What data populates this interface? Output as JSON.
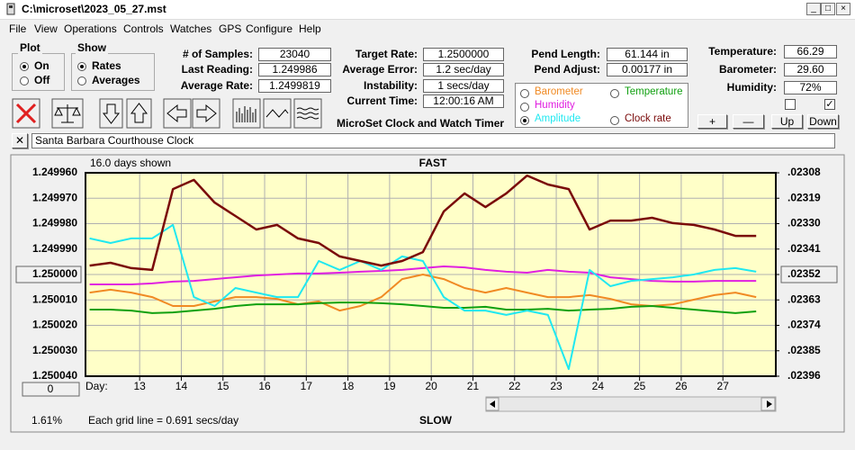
{
  "window": {
    "title": "C:\\microset\\2023_05_27.mst"
  },
  "menu": [
    "File",
    "View",
    "Operations",
    "Controls",
    "Watches",
    "GPS",
    "Configure",
    "Help"
  ],
  "plot_group": {
    "title": "Plot",
    "options": [
      "On",
      "Off"
    ],
    "selected": 0
  },
  "show_group": {
    "title": "Show",
    "options": [
      "Rates",
      "Averages"
    ],
    "selected": 0
  },
  "fields": [
    {
      "label": "# of Samples:",
      "value": "23040"
    },
    {
      "label": "Last Reading:",
      "value": "1.249986"
    },
    {
      "label": "Average Rate:",
      "value": "1.2499819"
    },
    {
      "label": "Target Rate:",
      "value": "1.2500000"
    },
    {
      "label": "Average Error:",
      "value": "1.2 sec/day"
    },
    {
      "label": "Instability:",
      "value": "1 secs/day"
    },
    {
      "label": "Current Time:",
      "value": "12:00:16 AM"
    },
    {
      "label": "Pend Length:",
      "value": "61.144 in"
    },
    {
      "label": "Pend Adjust:",
      "value": "0.00177 in"
    },
    {
      "label": "Temperature:",
      "value": "66.29"
    },
    {
      "label": "Barometer:",
      "value": "29.60"
    },
    {
      "label": "Humidity:",
      "value": "72%"
    }
  ],
  "app_title": "MicroSet Clock and Watch Timer",
  "buttons": [
    "+",
    "—",
    "Up",
    "Down"
  ],
  "clock_name": "Santa Barbara Courthouse Clock",
  "chart_data": {
    "type": "line",
    "days_shown": "16.0 days shown",
    "top_label": "FAST",
    "bottom_label": "SLOW",
    "x_label": "Day:",
    "grid_note": "Each grid line = 0.691 secs/day",
    "percent": "1.61%",
    "offset_button": "0",
    "grid": true,
    "selected_series": 3,
    "highlighted_ytick": 4,
    "highlighted_y2tick": 4,
    "xlim": [
      11.7,
      28.27
    ],
    "xticks": [
      13,
      14,
      15,
      16,
      17,
      18,
      19,
      20,
      21,
      22,
      23,
      24,
      25,
      26,
      27
    ],
    "ylim": [
      1.25004,
      1.24996
    ],
    "yticks": [
      {
        "value": 1.24996,
        "label": "1.249960"
      },
      {
        "value": 1.24997,
        "label": "1.249970"
      },
      {
        "value": 1.24998,
        "label": "1.249980"
      },
      {
        "value": 1.24999,
        "label": "1.249990"
      },
      {
        "value": 1.25,
        "label": "1.250000"
      },
      {
        "value": 1.25001,
        "label": "1.250010"
      },
      {
        "value": 1.25002,
        "label": "1.250020"
      },
      {
        "value": 1.25003,
        "label": "1.250030"
      },
      {
        "value": 1.25004,
        "label": "1.250040"
      }
    ],
    "y2lim": [
      0.02396,
      0.02308
    ],
    "y2ticks": [
      {
        "value": 0.02308,
        "label": ".02308"
      },
      {
        "value": 0.02319,
        "label": ".02319"
      },
      {
        "value": 0.0233,
        "label": ".02330"
      },
      {
        "value": 0.02341,
        "label": ".02341"
      },
      {
        "value": 0.02352,
        "label": ".02352"
      },
      {
        "value": 0.02363,
        "label": ".02363"
      },
      {
        "value": 0.02374,
        "label": ".02374"
      },
      {
        "value": 0.02385,
        "label": ".02385"
      },
      {
        "value": 0.02396,
        "label": ".02396"
      }
    ],
    "x": [
      11.8,
      12.3,
      12.8,
      13.3,
      13.8,
      14.3,
      14.8,
      15.3,
      15.8,
      16.3,
      16.8,
      17.3,
      17.8,
      18.3,
      18.8,
      19.3,
      19.8,
      20.3,
      20.8,
      21.3,
      21.8,
      22.3,
      22.8,
      23.3,
      23.8,
      24.3,
      24.8,
      25.3,
      25.8,
      26.3,
      26.8,
      27.3,
      27.8
    ],
    "series": [
      {
        "name": "Barometer",
        "color": "#f08a24",
        "values": [
          1.2500071,
          1.250006,
          1.2500071,
          1.2500089,
          1.2500124,
          1.2500124,
          1.2500106,
          1.2500089,
          1.2500089,
          1.2500096,
          1.2500117,
          1.2500106,
          1.2500142,
          1.2500124,
          1.2500089,
          1.2500018,
          1.25,
          1.2500018,
          1.2500053,
          1.2500071,
          1.2500053,
          1.2500071,
          1.2500089,
          1.2500089,
          1.2500081,
          1.2500096,
          1.2500117,
          1.2500124,
          1.2500117,
          1.2500099,
          1.2500081,
          1.2500071,
          1.2500089
        ]
      },
      {
        "name": "Temperature",
        "color": "#10a010",
        "values": [
          1.2500138,
          1.2500138,
          1.2500142,
          1.2500152,
          1.2500149,
          1.2500142,
          1.2500135,
          1.2500124,
          1.2500117,
          1.2500117,
          1.2500117,
          1.2500113,
          1.250011,
          1.250011,
          1.2500113,
          1.2500117,
          1.2500124,
          1.2500131,
          1.2500131,
          1.2500127,
          1.2500138,
          1.2500138,
          1.2500135,
          1.2500142,
          1.2500138,
          1.2500135,
          1.2500127,
          1.2500124,
          1.2500131,
          1.2500138,
          1.2500145,
          1.2500152,
          1.2500145
        ]
      },
      {
        "name": "Humidity",
        "color": "#e020e0",
        "values": [
          1.2500039,
          1.2500039,
          1.2500039,
          1.2500035,
          1.2500028,
          1.2500025,
          1.2500018,
          1.2500011,
          1.2500004,
          1.25,
          1.2499996,
          1.2499996,
          1.2499993,
          1.2499989,
          1.2499986,
          1.2499982,
          1.2499975,
          1.2499968,
          1.2499972,
          1.2499982,
          1.2499989,
          1.2499993,
          1.2499982,
          1.2499989,
          1.2499993,
          1.2500011,
          1.2500018,
          1.2500025,
          1.2500028,
          1.2500028,
          1.2500025,
          1.2500025,
          1.2500025
        ]
      },
      {
        "name": "Amplitude",
        "color": "#20e8f0",
        "values": [
          1.2499858,
          1.2499876,
          1.2499858,
          1.2499858,
          1.2499805,
          1.2500089,
          1.2500124,
          1.2500053,
          1.2500071,
          1.2500089,
          1.2500089,
          1.2499947,
          1.2499982,
          1.2499947,
          1.2499982,
          1.2499929,
          1.2499947,
          1.2500089,
          1.2500142,
          1.2500142,
          1.2500159,
          1.2500142,
          1.2500159,
          1.2500372,
          1.2499982,
          1.2500046,
          1.2500025,
          1.2500018,
          1.2500011,
          1.25,
          1.2499982,
          1.2499975,
          1.2499989
        ]
      },
      {
        "name": "Clock rate",
        "color": "#7a0a0a",
        "values": [
          1.2499965,
          1.2499954,
          1.2499975,
          1.2499982,
          1.2499664,
          1.2499628,
          1.2499717,
          1.249977,
          1.2499823,
          1.2499805,
          1.2499858,
          1.2499876,
          1.2499929,
          1.2499947,
          1.2499965,
          1.2499947,
          1.2499912,
          1.2499752,
          1.2499681,
          1.2499735,
          1.2499681,
          1.2499611,
          1.2499646,
          1.2499664,
          1.2499823,
          1.2499788,
          1.2499788,
          1.2499777,
          1.2499798,
          1.2499805,
          1.2499823,
          1.2499848,
          1.2499848
        ]
      }
    ]
  }
}
